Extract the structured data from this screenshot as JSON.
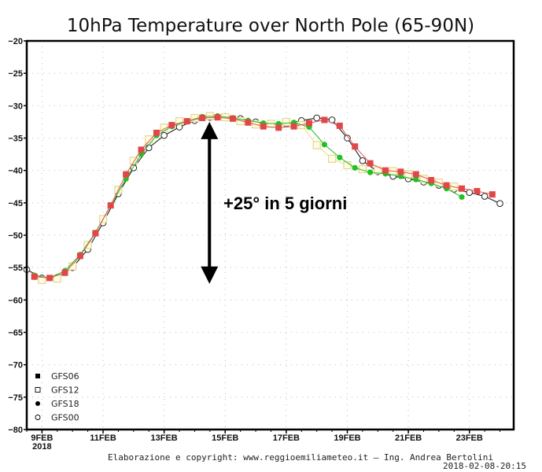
{
  "chart_data": {
    "type": "line",
    "title": "10hPa Temperature over North Pole (65-90N)",
    "xlabel": "",
    "ylabel": "",
    "ylim": [
      -80,
      -20
    ],
    "yticks": [
      -20,
      -25,
      -30,
      -35,
      -40,
      -45,
      -50,
      -55,
      -60,
      -65,
      -70,
      -75,
      -80
    ],
    "xticks": [
      "9FEB",
      "11FEB",
      "13FEB",
      "15FEB",
      "17FEB",
      "19FEB",
      "21FEB",
      "23FEB"
    ],
    "xtick_days": [
      9,
      11,
      13,
      15,
      17,
      19,
      21,
      23
    ],
    "xtick_year": "2018",
    "xlim_days": [
      8.5,
      24.45
    ],
    "grid": true,
    "legend_position": "bottom-left",
    "series": [
      {
        "name": "GFS06",
        "marker": "filled-square",
        "color": "#e04848",
        "start_day": 8.75,
        "step_days": 0.5,
        "values": [
          -56.4,
          -56.6,
          -55.8,
          -53.2,
          -49.7,
          -45.4,
          -40.6,
          -36.8,
          -34.2,
          -33.0,
          -32.4,
          -31.9,
          -31.8,
          -32.0,
          -32.6,
          -33.2,
          -33.4,
          -33.2,
          -32.7,
          -32.2,
          -33.1,
          -36.3,
          -38.9,
          -40.0,
          -40.2,
          -40.6,
          -41.5,
          -42.3,
          -42.8,
          -43.2,
          -43.7
        ]
      },
      {
        "name": "GFS12",
        "marker": "open-square",
        "color": "#e8e088",
        "start_day": 9.0,
        "step_days": 0.5,
        "values": [
          -56.9,
          -56.7,
          -54.8,
          -51.5,
          -47.5,
          -43.0,
          -38.5,
          -35.2,
          -33.4,
          -32.4,
          -31.9,
          -31.6,
          -31.8,
          -32.4,
          -32.9,
          -32.8,
          -32.5,
          -33.0,
          -36.1,
          -38.2,
          -39.2,
          -39.8,
          -40.0,
          -40.1,
          -40.6,
          -41.3,
          -41.9,
          -42.5
        ]
      },
      {
        "name": "GFS18",
        "marker": "filled-circle",
        "color": "#22c022",
        "start_day": 8.75,
        "step_days": 0.5,
        "values": [
          -56.2,
          -56.6,
          -55.5,
          -53.0,
          -49.6,
          -45.4,
          -41.3,
          -37.5,
          -34.6,
          -33.2,
          -32.4,
          -31.7,
          -31.6,
          -31.9,
          -32.3,
          -32.7,
          -32.8,
          -32.6,
          -33.3,
          -36.0,
          -38.0,
          -39.6,
          -40.3,
          -40.5,
          -40.9,
          -41.4,
          -42.0,
          -42.8,
          -44.1
        ]
      },
      {
        "name": "GFS00",
        "marker": "open-circle",
        "color": "#222222",
        "start_day": 8.5,
        "step_days": 0.5,
        "values": [
          -55.3,
          -56.6,
          -56.5,
          -55.0,
          -52.2,
          -48.1,
          -43.6,
          -39.6,
          -36.5,
          -34.6,
          -33.3,
          -32.3,
          -31.8,
          -31.7,
          -32.0,
          -32.5,
          -32.8,
          -32.8,
          -32.3,
          -31.9,
          -32.2,
          -35.0,
          -38.5,
          -40.2,
          -40.9,
          -41.3,
          -41.8,
          -42.3,
          -42.9,
          -43.4,
          -44.0,
          -45.1
        ]
      }
    ],
    "annotations": [
      {
        "text": "+25° in 5 giorni",
        "type": "double-arrow",
        "from_value": -57.5,
        "to_value": -32.5,
        "at_day": 15.0
      }
    ]
  },
  "footer": {
    "credit": "Elaborazione e copyright: www.reggioemiliameteo.it – Ing. Andrea Bertolini",
    "timestamp": "2018-02-08-20:15"
  }
}
